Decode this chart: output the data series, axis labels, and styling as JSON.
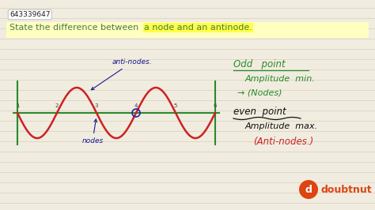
{
  "bg_color": "#f0ece0",
  "line_color": "#ddd5c0",
  "title_id": "643339647",
  "question_prefix": "State the difference between ",
  "question_highlight": "a node and an antinode.",
  "question_color": "#4a7a4a",
  "highlight_bg": "#ffff44",
  "wave_color": "#cc2222",
  "axis_color": "#2a8a2a",
  "vline_color": "#2a8a2a",
  "antinode_label": "anti-nodes.",
  "antinode_label_color": "#1a1a8e",
  "node_label": "nodes",
  "node_label_color": "#1a1a8e",
  "circle_color": "#2222aa",
  "right_text_1": "Odd   point",
  "right_text_2": "Amplitude  min.",
  "right_text_3": "→ (Nodes)",
  "right_text_4": "even  point",
  "right_text_5": "Amplitude  max.",
  "right_text_6": "(Anti-nodes.)",
  "right_color_1": "#2a8a2a",
  "right_color_2": "#2a8a2a",
  "right_color_3": "#2a8a2a",
  "right_color_4": "#111111",
  "right_color_5": "#111111",
  "right_color_6": "#cc2222",
  "doubtnut_color": "#dd4411",
  "num_labels": [
    "1",
    "2",
    "3",
    "4",
    "5",
    "6"
  ]
}
